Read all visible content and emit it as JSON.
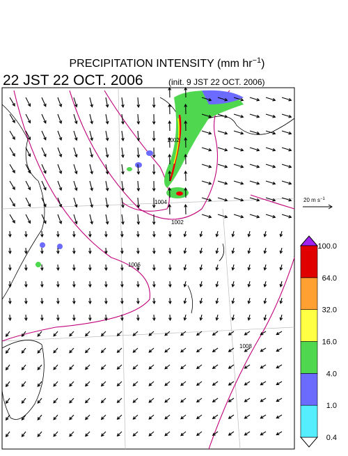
{
  "title": {
    "text": "PRECIPITATION INTENSITY (mm hr",
    "exponent": "−1",
    "close": ")"
  },
  "valid_time": "22 JST 22 OCT. 2006",
  "init_time": "(init. 9 JST 22 OCT. 2006)",
  "reference_vector": {
    "text": "20 m s",
    "exponent": "−1"
  },
  "isobar_labels": [
    "1002",
    "1004",
    "1002",
    "1006",
    "1008"
  ],
  "colorbar": {
    "labels": [
      "0.4",
      "1.0",
      "4.0",
      "16.0",
      "32.0",
      "64.0",
      "100.0"
    ]
  }
}
